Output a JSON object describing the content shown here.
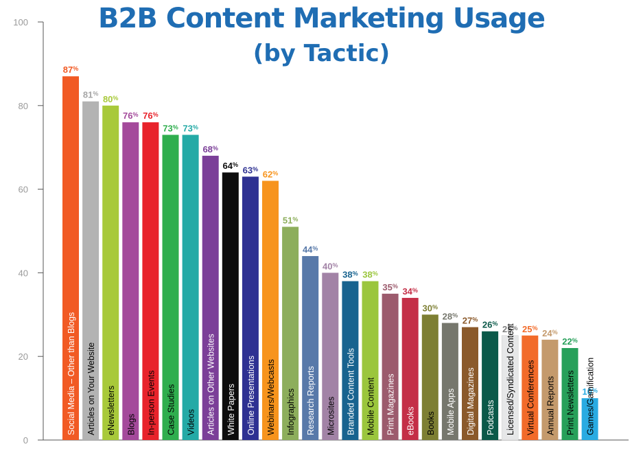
{
  "chart_data": {
    "type": "bar",
    "title": "B2B Content Marketing Usage",
    "subtitle": "(by Tactic)",
    "ylim": [
      0,
      100
    ],
    "yticks": [
      0,
      20,
      40,
      60,
      80,
      100
    ],
    "grid": false,
    "value_suffix": "%",
    "categories": [
      "Social Media – Other than Blogs",
      "Articles on Your Website",
      "eNewsletters",
      "Blogs",
      "In-person Events",
      "Case Studies",
      "Videos",
      "Articles on Other Websites",
      "White Papers",
      "Online Presentations",
      "Webinars/Webcasts",
      "Infographics",
      "Research Reports",
      "Microsites",
      "Branded Content Tools",
      "Mobile Content",
      "Print Magazines",
      "eBooks",
      "Books",
      "Mobile Apps",
      "Digital Magazines",
      "Podcasts",
      "Licensed/Syndicated Content",
      "Virtual Conferences",
      "Annual Reports",
      "Print Newsletters",
      "Games/Gamification"
    ],
    "values": [
      87,
      81,
      80,
      76,
      76,
      73,
      73,
      68,
      64,
      63,
      62,
      51,
      44,
      40,
      38,
      38,
      35,
      34,
      30,
      28,
      27,
      26,
      25,
      25,
      24,
      22,
      10
    ],
    "colors": [
      "#f15a24",
      "#b3b3b3",
      "#a8c93a",
      "#a44a9b",
      "#e8232b",
      "#2fae4e",
      "#24aaa6",
      "#7b3f98",
      "#0d0d0d",
      "#2e3192",
      "#f7941d",
      "#8dae5c",
      "#5879a9",
      "#a283a6",
      "#18638f",
      "#9bc63d",
      "#9c5b6d",
      "#c42f47",
      "#7d7f33",
      "#76776d",
      "#8b5a2b",
      "#0b5949",
      "#e6e7e8",
      "#f26b2a",
      "#c49a6c",
      "#27a05a",
      "#29abe2"
    ],
    "label_colors": [
      "#f15a24",
      "#a6a6a6",
      "#a8c93a",
      "#a44a9b",
      "#e8232b",
      "#2fae4e",
      "#24aaa6",
      "#7b3f98",
      "#0d0d0d",
      "#2e3192",
      "#f7941d",
      "#8dae5c",
      "#5879a9",
      "#a283a6",
      "#18638f",
      "#9bc63d",
      "#9c5b6d",
      "#c42f47",
      "#7d7f33",
      "#76776d",
      "#8b5a2b",
      "#0b5949",
      "#808080",
      "#f26b2a",
      "#c49a6c",
      "#27a05a",
      "#29abe2"
    ],
    "text_colors": [
      "#ffffff",
      "#000000",
      "#000000",
      "#000000",
      "#000000",
      "#000000",
      "#000000",
      "#ffffff",
      "#ffffff",
      "#ffffff",
      "#000000",
      "#000000",
      "#ffffff",
      "#000000",
      "#ffffff",
      "#000000",
      "#ffffff",
      "#ffffff",
      "#000000",
      "#ffffff",
      "#ffffff",
      "#ffffff",
      "#000000",
      "#000000",
      "#000000",
      "#000000",
      "#000000"
    ]
  }
}
